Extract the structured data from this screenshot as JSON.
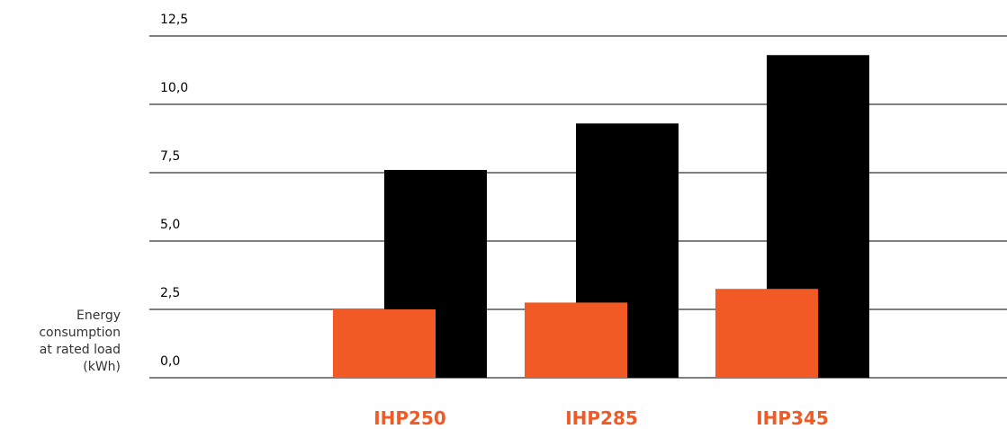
{
  "chart_data": {
    "type": "bar",
    "categories": [
      "IHP250",
      "IHP285",
      "IHP345"
    ],
    "series": [
      {
        "values": [
          2.5,
          2.75,
          3.25
        ],
        "color": "#F15A24"
      },
      {
        "values": [
          7.6,
          9.3,
          11.8
        ],
        "color": "#000000"
      }
    ],
    "ylabel": "Energy\nconsumption\nat rated load\n(kWh)",
    "yticks": [
      "0,0",
      "2,5",
      "5,0",
      "7,5",
      "10,0",
      "12,5"
    ],
    "ylim": [
      0,
      12.5
    ],
    "grid": true,
    "category_label_color": "#F15A24"
  }
}
